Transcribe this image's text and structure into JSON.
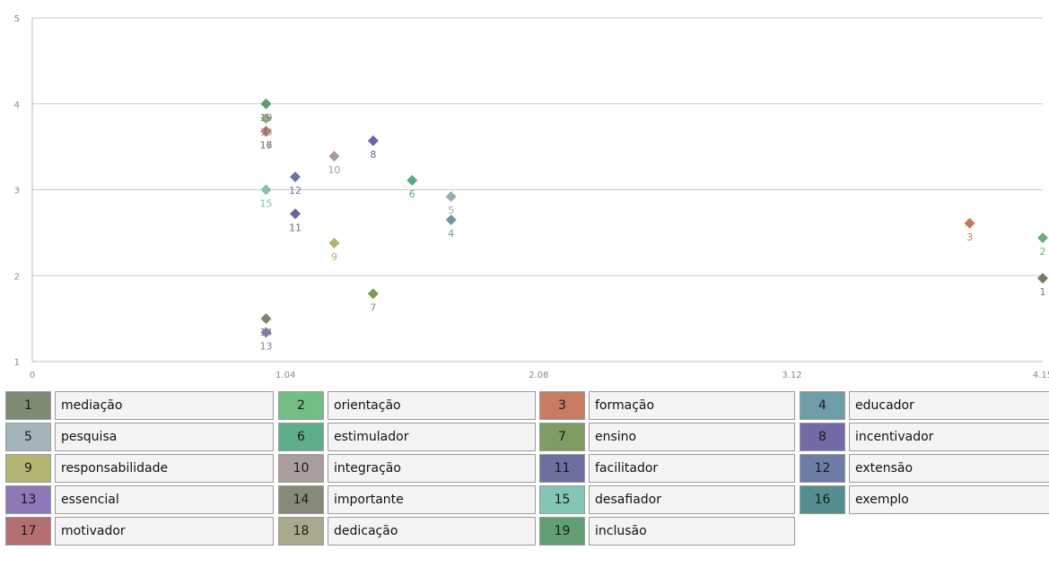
{
  "chart_data": {
    "type": "scatter",
    "x_ticks": [
      "0",
      "1.04",
      "2.08",
      "3.12",
      "4.15"
    ],
    "y_ticks": [
      "1",
      "2",
      "3",
      "4",
      "5"
    ],
    "xlim": [
      0,
      4.15
    ],
    "ylim": [
      1,
      5
    ],
    "grid": true,
    "points": [
      {
        "id": "1",
        "x": 4.15,
        "y": 1.97,
        "color": "#6e7d62"
      },
      {
        "id": "2",
        "x": 4.15,
        "y": 2.44,
        "color": "#6ab07c"
      },
      {
        "id": "3",
        "x": 3.85,
        "y": 2.61,
        "color": "#c6785c"
      },
      {
        "id": "4",
        "x": 1.72,
        "y": 2.65,
        "color": "#6b98a3"
      },
      {
        "id": "5",
        "x": 1.72,
        "y": 2.92,
        "color": "#9aaeb4"
      },
      {
        "id": "6",
        "x": 1.56,
        "y": 3.11,
        "color": "#5aa985"
      },
      {
        "id": "7",
        "x": 1.4,
        "y": 1.79,
        "color": "#7a9a5e"
      },
      {
        "id": "8",
        "x": 1.4,
        "y": 3.57,
        "color": "#6b63a3"
      },
      {
        "id": "9",
        "x": 1.24,
        "y": 2.38,
        "color": "#b2b26e"
      },
      {
        "id": "10",
        "x": 1.24,
        "y": 3.39,
        "color": "#a79a98"
      },
      {
        "id": "11",
        "x": 1.08,
        "y": 2.72,
        "color": "#67699b"
      },
      {
        "id": "12",
        "x": 1.08,
        "y": 3.15,
        "color": "#6a77a6"
      },
      {
        "id": "13",
        "x": 0.96,
        "y": 1.34,
        "color": "#8b72b5"
      },
      {
        "id": "14",
        "x": 0.96,
        "y": 1.5,
        "color": "#7f8570"
      },
      {
        "id": "15",
        "x": 0.96,
        "y": 3.0,
        "color": "#7ec3b1"
      },
      {
        "id": "16",
        "x": 0.96,
        "y": 3.68,
        "color": "#4f8a8a"
      },
      {
        "id": "17",
        "x": 0.96,
        "y": 3.68,
        "color": "#b06a6a"
      },
      {
        "id": "18",
        "x": 0.96,
        "y": 3.83,
        "color": "#a3a387"
      },
      {
        "id": "19",
        "x": 0.96,
        "y": 4.0,
        "color": "#5e9a6e"
      }
    ]
  },
  "legend": [
    {
      "num": "1",
      "label": "mediação",
      "color": "#7d8b72"
    },
    {
      "num": "2",
      "label": "orientação",
      "color": "#73be84"
    },
    {
      "num": "3",
      "label": "formação",
      "color": "#c97c61"
    },
    {
      "num": "4",
      "label": "educador",
      "color": "#6f9ea8"
    },
    {
      "num": "5",
      "label": "pesquisa",
      "color": "#a3b5ba"
    },
    {
      "num": "6",
      "label": "estimulador",
      "color": "#5fae8a"
    },
    {
      "num": "7",
      "label": "ensino",
      "color": "#7f9d63"
    },
    {
      "num": "8",
      "label": "incentivador",
      "color": "#7369a6"
    },
    {
      "num": "9",
      "label": "responsabilidade",
      "color": "#b5b673"
    },
    {
      "num": "10",
      "label": "integração",
      "color": "#aa9e9c"
    },
    {
      "num": "11",
      "label": "facilitador",
      "color": "#6d6fa0"
    },
    {
      "num": "12",
      "label": "extensão",
      "color": "#6f7ca8"
    },
    {
      "num": "13",
      "label": "essencial",
      "color": "#8f77b8"
    },
    {
      "num": "14",
      "label": "importante",
      "color": "#858b76"
    },
    {
      "num": "15",
      "label": "desafiador",
      "color": "#84c6b5"
    },
    {
      "num": "16",
      "label": "exemplo",
      "color": "#548e8e"
    },
    {
      "num": "17",
      "label": "motivador",
      "color": "#b36f6f"
    },
    {
      "num": "18",
      "label": "dedicação",
      "color": "#a8a88d"
    },
    {
      "num": "19",
      "label": "inclusão",
      "color": "#629e72"
    }
  ]
}
